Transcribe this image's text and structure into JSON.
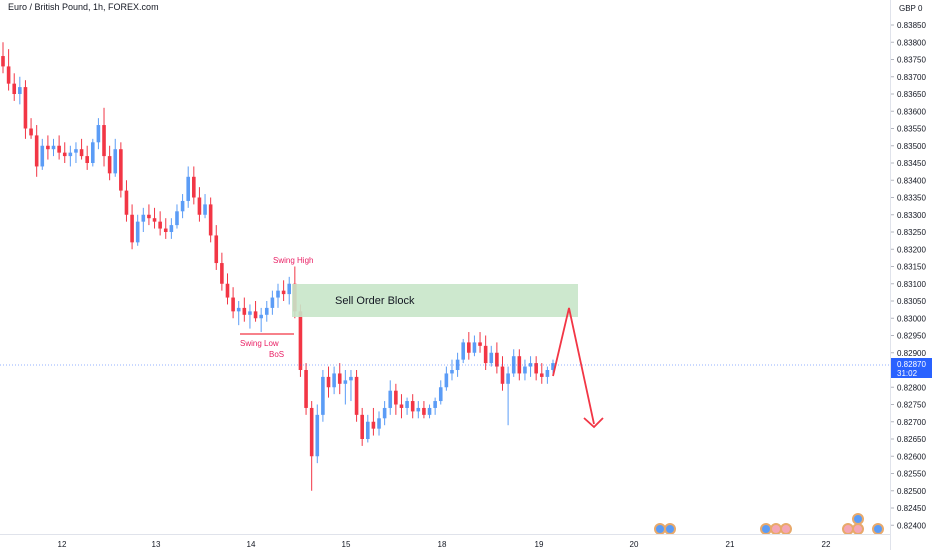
{
  "header": {
    "title": "Euro / British Pound, 1h, FOREX.com"
  },
  "price_axis": {
    "currency": "GBP",
    "currency_suffix": "0",
    "current_price": "0.82870",
    "countdown": "31:02",
    "ticks": [
      "0.83850",
      "0.83800",
      "0.83750",
      "0.83700",
      "0.83650",
      "0.83600",
      "0.83550",
      "0.83500",
      "0.83450",
      "0.83400",
      "0.83350",
      "0.83300",
      "0.83250",
      "0.83200",
      "0.83150",
      "0.83100",
      "0.83050",
      "0.83000",
      "0.82950",
      "0.82900",
      "0.82850",
      "0.82800",
      "0.82750",
      "0.82700",
      "0.82650",
      "0.82600",
      "0.82550",
      "0.82500",
      "0.82450",
      "0.82400"
    ]
  },
  "time_axis": {
    "ticks": [
      "12",
      "13",
      "14",
      "15",
      "18",
      "19",
      "20",
      "21",
      "22"
    ]
  },
  "annotations": {
    "swing_high": "Swing High",
    "swing_low": "Swing Low",
    "bos": "BoS",
    "order_block": "Sell Order Block"
  },
  "colors": {
    "up": "#5b9cf6",
    "down": "#f23645",
    "annotation_text": "#e91e63",
    "order_block_fill": "#c8e6c9",
    "arrow": "#f23645",
    "price_tag": "#2962ff"
  },
  "chart_data": {
    "type": "candlestick",
    "title": "Euro / British Pound, 1h, FOREX.com",
    "y_unit": "GBP",
    "ylim": [
      0.8237,
      0.8398
    ],
    "x_ticks": [
      "12",
      "13",
      "14",
      "15",
      "18",
      "19",
      "20",
      "21",
      "22"
    ],
    "grid": false,
    "ohlc": [
      [
        0.8376,
        0.838,
        0.8371,
        0.8373
      ],
      [
        0.8373,
        0.8378,
        0.8366,
        0.8368
      ],
      [
        0.8368,
        0.8371,
        0.8363,
        0.8365
      ],
      [
        0.8365,
        0.837,
        0.8362,
        0.8367
      ],
      [
        0.8367,
        0.8369,
        0.8352,
        0.8355
      ],
      [
        0.8355,
        0.8358,
        0.8352,
        0.8353
      ],
      [
        0.8353,
        0.8356,
        0.8341,
        0.8344
      ],
      [
        0.8344,
        0.8352,
        0.8343,
        0.835
      ],
      [
        0.835,
        0.8353,
        0.8346,
        0.8349
      ],
      [
        0.8349,
        0.8352,
        0.8347,
        0.835
      ],
      [
        0.835,
        0.8353,
        0.8346,
        0.8348
      ],
      [
        0.8348,
        0.8351,
        0.8345,
        0.8347
      ],
      [
        0.8347,
        0.835,
        0.8344,
        0.8348
      ],
      [
        0.8348,
        0.8351,
        0.8345,
        0.8349
      ],
      [
        0.8349,
        0.8352,
        0.8346,
        0.8347
      ],
      [
        0.8347,
        0.835,
        0.8343,
        0.8345
      ],
      [
        0.8345,
        0.8352,
        0.8344,
        0.8351
      ],
      [
        0.8351,
        0.8358,
        0.8349,
        0.8356
      ],
      [
        0.8356,
        0.8361,
        0.8344,
        0.8347
      ],
      [
        0.8347,
        0.835,
        0.834,
        0.8342
      ],
      [
        0.8342,
        0.8352,
        0.8341,
        0.8349
      ],
      [
        0.8349,
        0.8351,
        0.8335,
        0.8337
      ],
      [
        0.8337,
        0.834,
        0.8328,
        0.833
      ],
      [
        0.833,
        0.8333,
        0.832,
        0.8322
      ],
      [
        0.8322,
        0.833,
        0.8321,
        0.8328
      ],
      [
        0.8328,
        0.8332,
        0.8325,
        0.833
      ],
      [
        0.833,
        0.8333,
        0.8327,
        0.8329
      ],
      [
        0.8329,
        0.8332,
        0.8326,
        0.8328
      ],
      [
        0.8328,
        0.8331,
        0.8324,
        0.8326
      ],
      [
        0.8326,
        0.8329,
        0.8323,
        0.8325
      ],
      [
        0.8325,
        0.8329,
        0.8323,
        0.8327
      ],
      [
        0.8327,
        0.8333,
        0.8326,
        0.8331
      ],
      [
        0.8331,
        0.8336,
        0.8329,
        0.8334
      ],
      [
        0.8334,
        0.8344,
        0.8332,
        0.8341
      ],
      [
        0.8341,
        0.8344,
        0.8333,
        0.8335
      ],
      [
        0.8335,
        0.8338,
        0.8328,
        0.833
      ],
      [
        0.833,
        0.8336,
        0.8329,
        0.8333
      ],
      [
        0.8333,
        0.8335,
        0.8322,
        0.8324
      ],
      [
        0.8324,
        0.8327,
        0.8314,
        0.8316
      ],
      [
        0.8316,
        0.8319,
        0.8308,
        0.831
      ],
      [
        0.831,
        0.8313,
        0.8304,
        0.8306
      ],
      [
        0.8306,
        0.8309,
        0.83,
        0.8302
      ],
      [
        0.8302,
        0.8305,
        0.8298,
        0.8303
      ],
      [
        0.8303,
        0.8306,
        0.8299,
        0.8301
      ],
      [
        0.8301,
        0.8304,
        0.8297,
        0.8302
      ],
      [
        0.8302,
        0.8305,
        0.8299,
        0.83
      ],
      [
        0.83,
        0.8303,
        0.8296,
        0.8301
      ],
      [
        0.8301,
        0.8305,
        0.8299,
        0.8303
      ],
      [
        0.8303,
        0.8308,
        0.8301,
        0.8306
      ],
      [
        0.8306,
        0.831,
        0.8303,
        0.8308
      ],
      [
        0.8308,
        0.8311,
        0.8305,
        0.8307
      ],
      [
        0.8307,
        0.8312,
        0.8304,
        0.831
      ],
      [
        0.831,
        0.8315,
        0.83,
        0.8302
      ],
      [
        0.8302,
        0.8304,
        0.8283,
        0.8285
      ],
      [
        0.8285,
        0.8287,
        0.8272,
        0.8274
      ],
      [
        0.8274,
        0.8276,
        0.825,
        0.826
      ],
      [
        0.826,
        0.8275,
        0.8258,
        0.8272
      ],
      [
        0.8272,
        0.8285,
        0.827,
        0.8283
      ],
      [
        0.8283,
        0.8286,
        0.8277,
        0.828
      ],
      [
        0.828,
        0.8286,
        0.8278,
        0.8284
      ],
      [
        0.8284,
        0.8287,
        0.8278,
        0.8281
      ],
      [
        0.8281,
        0.8285,
        0.8275,
        0.8282
      ],
      [
        0.8282,
        0.8285,
        0.8276,
        0.8283
      ],
      [
        0.8283,
        0.8285,
        0.827,
        0.8272
      ],
      [
        0.8272,
        0.8274,
        0.8263,
        0.8265
      ],
      [
        0.8265,
        0.8272,
        0.8264,
        0.827
      ],
      [
        0.827,
        0.8274,
        0.8266,
        0.8268
      ],
      [
        0.8268,
        0.8273,
        0.8266,
        0.8271
      ],
      [
        0.8271,
        0.8276,
        0.8269,
        0.8274
      ],
      [
        0.8274,
        0.8282,
        0.8272,
        0.8279
      ],
      [
        0.8279,
        0.8281,
        0.8272,
        0.8275
      ],
      [
        0.8275,
        0.8278,
        0.8271,
        0.8274
      ],
      [
        0.8274,
        0.8277,
        0.8272,
        0.8276
      ],
      [
        0.8276,
        0.8278,
        0.8271,
        0.8273
      ],
      [
        0.8273,
        0.8276,
        0.8271,
        0.8274
      ],
      [
        0.8274,
        0.8276,
        0.8271,
        0.8272
      ],
      [
        0.8272,
        0.8275,
        0.8271,
        0.8274
      ],
      [
        0.8274,
        0.8277,
        0.8272,
        0.8276
      ],
      [
        0.8276,
        0.8282,
        0.8275,
        0.828
      ],
      [
        0.828,
        0.8286,
        0.8279,
        0.8284
      ],
      [
        0.8284,
        0.8288,
        0.8282,
        0.8285
      ],
      [
        0.8285,
        0.829,
        0.8283,
        0.8288
      ],
      [
        0.8288,
        0.8294,
        0.8287,
        0.8293
      ],
      [
        0.8293,
        0.8296,
        0.8288,
        0.829
      ],
      [
        0.829,
        0.8295,
        0.8289,
        0.8293
      ],
      [
        0.8293,
        0.8296,
        0.829,
        0.8292
      ],
      [
        0.8292,
        0.8295,
        0.8285,
        0.8287
      ],
      [
        0.8287,
        0.8292,
        0.8286,
        0.829
      ],
      [
        0.829,
        0.8293,
        0.8284,
        0.8286
      ],
      [
        0.8286,
        0.8289,
        0.8279,
        0.8281
      ],
      [
        0.8281,
        0.8286,
        0.8269,
        0.8284
      ],
      [
        0.8284,
        0.8291,
        0.8283,
        0.8289
      ],
      [
        0.8289,
        0.8291,
        0.8282,
        0.8284
      ],
      [
        0.8284,
        0.8288,
        0.8282,
        0.8286
      ],
      [
        0.8286,
        0.8289,
        0.8283,
        0.8287
      ],
      [
        0.8287,
        0.8289,
        0.8282,
        0.8284
      ],
      [
        0.8284,
        0.8287,
        0.8281,
        0.8283
      ],
      [
        0.8283,
        0.8286,
        0.8281,
        0.8285
      ],
      [
        0.8285,
        0.8288,
        0.8284,
        0.8287
      ]
    ],
    "annotations": [
      {
        "text": "Swing High",
        "price": 0.8315
      },
      {
        "text": "Swing Low",
        "price": 0.8296
      },
      {
        "text": "BoS",
        "price": 0.8296
      },
      {
        "text": "Sell Order Block",
        "price_top": 0.831,
        "price_bottom": 0.8301
      },
      {
        "text": "",
        "type": "projected-path",
        "prices": [
          0.8287,
          0.8303,
          0.8269
        ]
      }
    ],
    "last_price": 0.8287
  }
}
